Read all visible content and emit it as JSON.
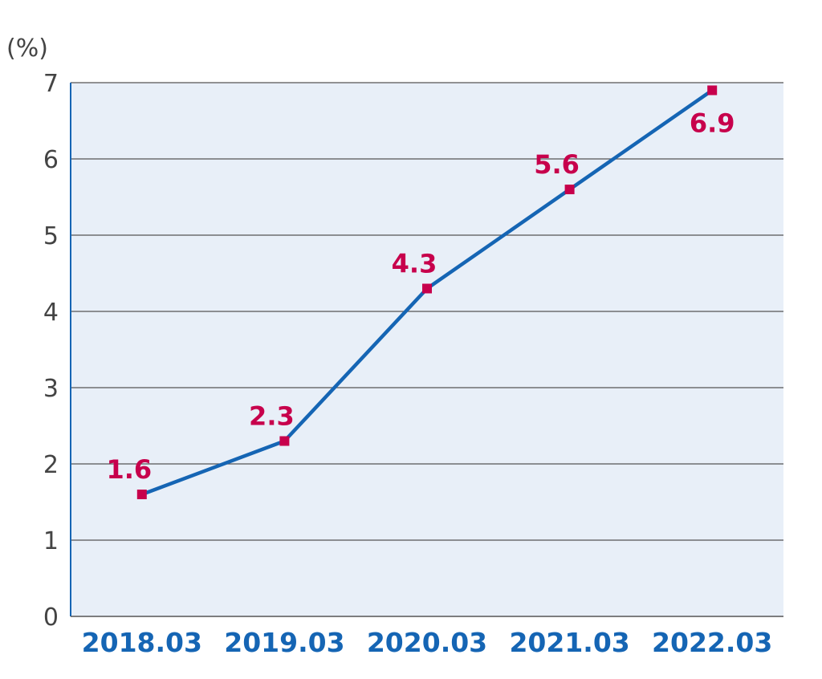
{
  "chart_data": {
    "type": "line",
    "ylabel": "(%)",
    "categories": [
      "2018.03",
      "2019.03",
      "2020.03",
      "2021.03",
      "2022.03"
    ],
    "series": [
      {
        "values": [
          1.6,
          2.3,
          4.3,
          5.6,
          6.9
        ],
        "data_labels": [
          "1.6",
          "2.3",
          "4.3",
          "5.6",
          "6.9"
        ]
      }
    ],
    "ylim": [
      0,
      7
    ],
    "yticks": [
      "0",
      "1",
      "2",
      "3",
      "4",
      "5",
      "6",
      "7"
    ],
    "grid": true,
    "colors": {
      "plot_background": "#e8eff8",
      "line": "#1565b4",
      "marker": "#c7004c",
      "label": "#c7004c",
      "x_tick": "#1565b4",
      "axis_text": "#444444"
    }
  }
}
